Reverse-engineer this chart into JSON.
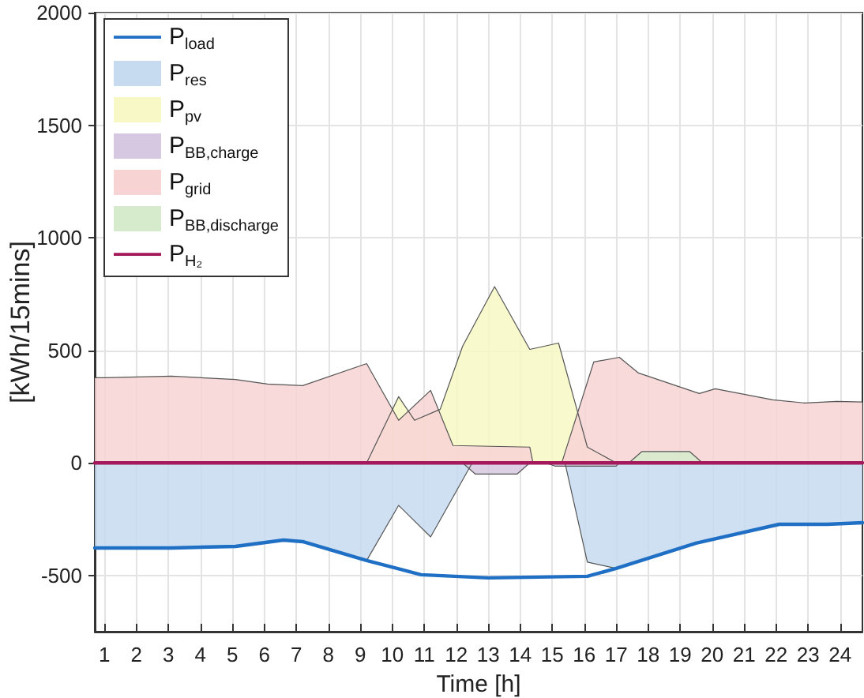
{
  "chart_data": {
    "type": "area",
    "xlabel": "Time [h]",
    "ylabel": "[kWh/15mins]",
    "xlim": [
      0.7,
      24.7
    ],
    "xticks": [
      1,
      2,
      3,
      4,
      5,
      6,
      7,
      8,
      9,
      10,
      11,
      12,
      13,
      14,
      15,
      16,
      17,
      18,
      19,
      20,
      21,
      22,
      23,
      24
    ],
    "ylim": [
      -750,
      2000
    ],
    "yticks": [
      -500,
      0,
      500,
      1000,
      1500,
      2000
    ],
    "grid": true,
    "legend": "top left",
    "series": [
      {
        "name": "P$_{load}$",
        "type": "line",
        "color": "#1f6fc5",
        "x": [
          0.7,
          1,
          3.1,
          5.1,
          6.6,
          7.2,
          9.2,
          10.9,
          13,
          16.1,
          17,
          19.5,
          22.1,
          23.6,
          24.7
        ],
        "values": [
          -378,
          -378,
          -378,
          -371,
          -343,
          -350,
          -434,
          -497,
          -511,
          -504,
          -469,
          -357,
          -273,
          -273,
          -266
        ]
      },
      {
        "name": "P$_{res}$",
        "color": "#c6dbf0",
        "x": [
          0.7,
          1,
          3.1,
          5.1,
          6.6,
          7.2,
          9.2,
          10.2,
          11.2,
          12.5,
          15.4,
          16.1,
          17,
          19.5,
          22.1,
          23.6,
          24.7
        ],
        "values": [
          -378,
          -378,
          -378,
          -371,
          -343,
          -350,
          -434,
          -189,
          -329,
          0,
          0,
          -441,
          -469,
          -357,
          -273,
          -273,
          -266
        ]
      },
      {
        "name": "P$_{pv}$",
        "color": "#f8f8c6",
        "x": [
          0.7,
          9.2,
          10.2,
          10.7,
          11.5,
          12.2,
          13.2,
          14.3,
          15.2,
          16.1,
          17,
          24.7
        ],
        "values": [
          0,
          0,
          294,
          189,
          238,
          518,
          783,
          504,
          532,
          70,
          0,
          0
        ]
      },
      {
        "name": "P$_{BB,charge}$",
        "color": "#d6c8e0",
        "x": [
          0.7,
          12.2,
          12.6,
          13.9,
          14.3,
          14.8,
          15.1,
          17,
          17.1,
          24.7
        ],
        "values": [
          0,
          0,
          -50,
          -50,
          0,
          0,
          -15,
          -15,
          0,
          0
        ]
      },
      {
        "name": "P$_{grid}$",
        "color": "#f8d3d3",
        "x": [
          0.7,
          1,
          3.1,
          5.1,
          6.1,
          7.2,
          9.2,
          10.2,
          11.2,
          11.9,
          14.3,
          14.4,
          15.3,
          16.3,
          17.1,
          17.7,
          19.6,
          20.1,
          21.9,
          22.9,
          23.9,
          24.7
        ],
        "values": [
          378,
          378,
          385,
          370,
          350,
          343,
          441,
          189,
          322,
          77,
          70,
          0,
          0,
          448,
          469,
          399,
          308,
          329,
          280,
          266,
          273,
          270
        ]
      },
      {
        "name": "P$_{BB,discharge}$",
        "color": "#d6ebcc",
        "x": [
          0.7,
          17.4,
          17.8,
          19.3,
          19.7,
          24.7
        ],
        "values": [
          0,
          0,
          50,
          50,
          0,
          0
        ]
      },
      {
        "name": "P$_{H₂}$",
        "type": "line",
        "color": "#a3195b",
        "x": [
          0.7,
          1,
          2,
          3,
          4,
          5,
          6,
          7,
          8,
          9,
          10,
          11,
          12,
          13,
          14,
          15,
          16,
          17,
          18,
          19,
          20,
          21,
          22,
          23,
          24,
          24.7
        ],
        "values": [
          0,
          0,
          0,
          0,
          0,
          0,
          0,
          0,
          0,
          0,
          0,
          0,
          0,
          0,
          0,
          0,
          0,
          0,
          0,
          0,
          0,
          0,
          0,
          0,
          0,
          0
        ]
      }
    ]
  }
}
